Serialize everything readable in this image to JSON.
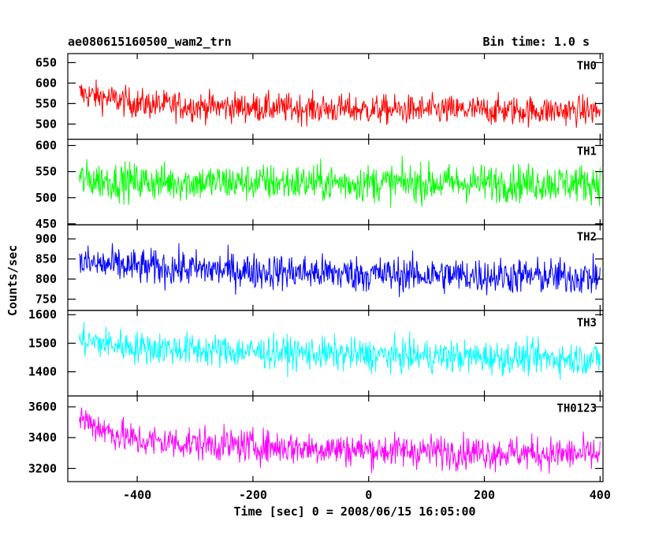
{
  "header": {
    "title": "ae080615160500_wam2_trn",
    "bin_time": "Bin time: 1.0 s"
  },
  "chart_data": {
    "type": "line",
    "title": "ae080615160500_wam2_trn",
    "subtitle": "Bin time: 1.0 s",
    "xlabel": "Time [sec] 0 = 2008/06/15 16:05:00",
    "ylabel": "Counts/sec",
    "xlim": [
      -520,
      405
    ],
    "x_ticks": [
      "-400",
      "-200",
      "0",
      "200",
      "400"
    ],
    "x_tick_values": [
      -400,
      -200,
      0,
      200,
      400
    ],
    "panels": [
      {
        "name": "TH0",
        "color": "#ff0000",
        "ylim": [
          463,
          672
        ],
        "y_ticks": [
          500,
          550,
          600,
          650
        ],
        "baseline": [
          [
            -500,
            575
          ],
          [
            -400,
            550
          ],
          [
            -300,
            543
          ],
          [
            0,
            535
          ],
          [
            400,
            532
          ]
        ],
        "noise": 28,
        "x_range": [
          -500,
          400
        ]
      },
      {
        "name": "TH1",
        "color": "#00ff00",
        "ylim": [
          448,
          612
        ],
        "y_ticks": [
          450,
          500,
          550,
          600
        ],
        "baseline": [
          [
            -500,
            535
          ],
          [
            -400,
            530
          ],
          [
            0,
            528
          ],
          [
            400,
            528
          ]
        ],
        "noise": 28,
        "x_range": [
          -500,
          400
        ]
      },
      {
        "name": "TH2",
        "color": "#0000ff",
        "ylim": [
          722,
          935
        ],
        "y_ticks": [
          750,
          800,
          850,
          900
        ],
        "baseline": [
          [
            -500,
            840
          ],
          [
            -400,
            830
          ],
          [
            -200,
            820
          ],
          [
            0,
            812
          ],
          [
            400,
            805
          ]
        ],
        "noise": 35,
        "x_range": [
          -500,
          400
        ]
      },
      {
        "name": "TH3",
        "color": "#00ffff",
        "ylim": [
          1315,
          1615
        ],
        "y_ticks": [
          1400,
          1500,
          1600
        ],
        "baseline": [
          [
            -500,
            1510
          ],
          [
            -400,
            1485
          ],
          [
            -200,
            1470
          ],
          [
            0,
            1458
          ],
          [
            400,
            1445
          ]
        ],
        "noise": 45,
        "x_range": [
          -500,
          400
        ]
      },
      {
        "name": "TH0123",
        "color": "#ff00ff",
        "ylim": [
          3115,
          3670
        ],
        "y_ticks": [
          3200,
          3400,
          3600
        ],
        "baseline": [
          [
            -500,
            3530
          ],
          [
            -450,
            3440
          ],
          [
            -400,
            3380
          ],
          [
            -200,
            3345
          ],
          [
            0,
            3320
          ],
          [
            400,
            3290
          ]
        ],
        "noise": 85,
        "x_range": [
          -500,
          400
        ]
      }
    ],
    "grid": false
  }
}
